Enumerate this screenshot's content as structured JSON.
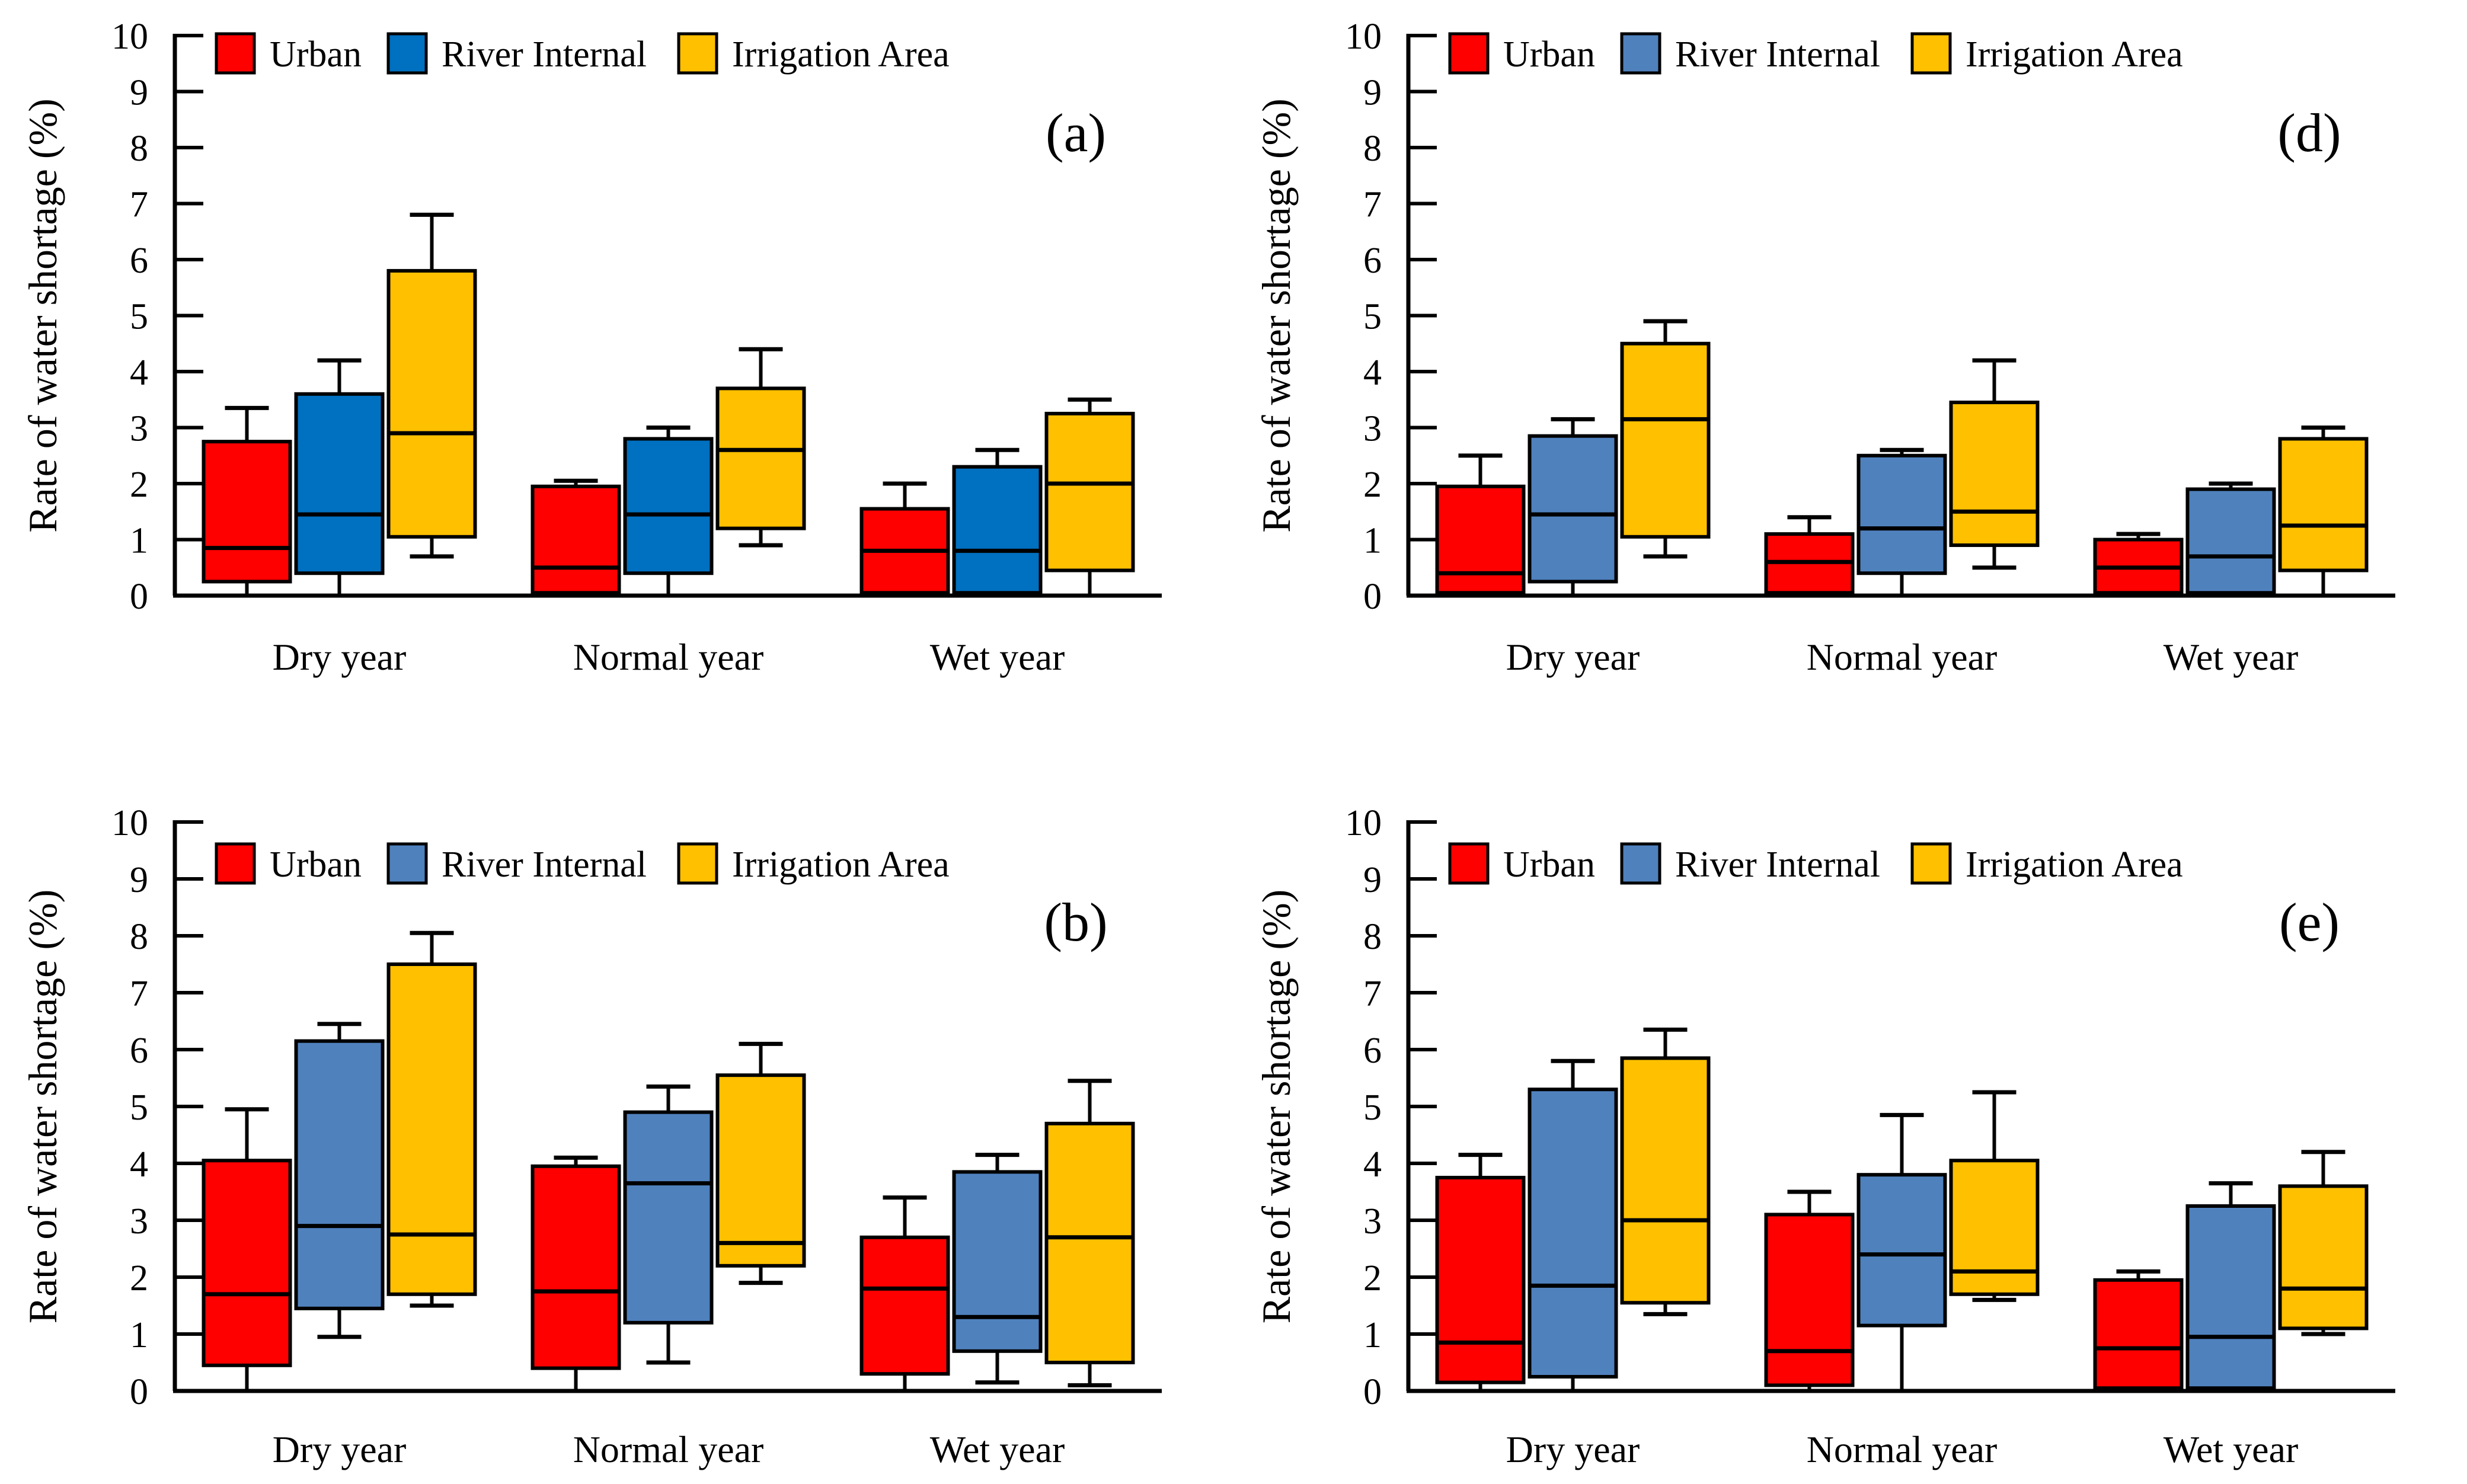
{
  "figure": {
    "background": "#FFFFFF",
    "axis_color": "#000000",
    "ylabel": "Rate of water shortage (%)",
    "categories": [
      "Dry year",
      "Normal year",
      "Wet year"
    ],
    "legend_labels": [
      "Urban",
      "River Internal",
      "Irrigation Area"
    ]
  },
  "chart_data": [
    {
      "type": "boxplot",
      "panel_label": "(a)",
      "position": "top-left",
      "title": "",
      "xlabel": "",
      "ylabel": "Rate of water shortage (%)",
      "ylim": [
        0,
        10
      ],
      "yticks": [
        0,
        1,
        2,
        3,
        4,
        5,
        6,
        7,
        8,
        9,
        10
      ],
      "grid": "off",
      "legend_position": "top-inside",
      "categories": [
        "Dry year",
        "Normal year",
        "Wet year"
      ],
      "series": [
        {
          "name": "Urban",
          "color": "#FF0000",
          "boxes": [
            {
              "low": 0,
              "q1": 0.25,
              "median": 0.85,
              "q3": 2.75,
              "high": 3.35
            },
            {
              "low": 0,
              "q1": 0.05,
              "median": 0.5,
              "q3": 1.95,
              "high": 2.05
            },
            {
              "low": 0,
              "q1": 0.05,
              "median": 0.8,
              "q3": 1.55,
              "high": 2.0
            }
          ]
        },
        {
          "name": "River Internal",
          "color": "#0070C0",
          "boxes": [
            {
              "low": 0,
              "q1": 0.4,
              "median": 1.45,
              "q3": 3.6,
              "high": 4.2
            },
            {
              "low": 0,
              "q1": 0.4,
              "median": 1.45,
              "q3": 2.8,
              "high": 3.0
            },
            {
              "low": 0,
              "q1": 0.05,
              "median": 0.8,
              "q3": 2.3,
              "high": 2.6
            }
          ]
        },
        {
          "name": "Irrigation Area",
          "color": "#FFC000",
          "boxes": [
            {
              "low": 0.7,
              "q1": 1.05,
              "median": 2.9,
              "q3": 5.8,
              "high": 6.8
            },
            {
              "low": 0.9,
              "q1": 1.2,
              "median": 2.6,
              "q3": 3.7,
              "high": 4.4
            },
            {
              "low": 0,
              "q1": 0.45,
              "median": 2.0,
              "q3": 3.25,
              "high": 3.5
            }
          ]
        }
      ]
    },
    {
      "type": "boxplot",
      "panel_label": "(d)",
      "position": "top-right",
      "title": "",
      "xlabel": "",
      "ylabel": "Rate of water shortage (%)",
      "ylim": [
        0,
        10
      ],
      "yticks": [
        0,
        1,
        2,
        3,
        4,
        5,
        6,
        7,
        8,
        9,
        10
      ],
      "grid": "off",
      "legend_position": "top-inside",
      "categories": [
        "Dry year",
        "Normal year",
        "Wet year"
      ],
      "series": [
        {
          "name": "Urban",
          "color": "#FF0000",
          "boxes": [
            {
              "low": 0,
              "q1": 0.05,
              "median": 0.4,
              "q3": 1.95,
              "high": 2.5
            },
            {
              "low": 0,
              "q1": 0.05,
              "median": 0.6,
              "q3": 1.1,
              "high": 1.4
            },
            {
              "low": 0,
              "q1": 0.05,
              "median": 0.5,
              "q3": 1.0,
              "high": 1.1
            }
          ]
        },
        {
          "name": "River Internal",
          "color": "#4F81BD",
          "boxes": [
            {
              "low": 0,
              "q1": 0.25,
              "median": 1.45,
              "q3": 2.85,
              "high": 3.15
            },
            {
              "low": 0,
              "q1": 0.4,
              "median": 1.2,
              "q3": 2.5,
              "high": 2.6
            },
            {
              "low": 0,
              "q1": 0.05,
              "median": 0.7,
              "q3": 1.9,
              "high": 2.0
            }
          ]
        },
        {
          "name": "Irrigation Area",
          "color": "#FFC000",
          "boxes": [
            {
              "low": 0.7,
              "q1": 1.05,
              "median": 3.15,
              "q3": 4.5,
              "high": 4.9
            },
            {
              "low": 0.5,
              "q1": 0.9,
              "median": 1.5,
              "q3": 3.45,
              "high": 4.2
            },
            {
              "low": 0,
              "q1": 0.45,
              "median": 1.25,
              "q3": 2.8,
              "high": 3.0
            }
          ]
        }
      ]
    },
    {
      "type": "boxplot",
      "panel_label": "(b)",
      "position": "bottom-left",
      "title": "",
      "xlabel": "",
      "ylabel": "Rate of water shortage (%)",
      "ylim": [
        0,
        10
      ],
      "yticks": [
        0,
        1,
        2,
        3,
        4,
        5,
        6,
        7,
        8,
        9,
        10
      ],
      "grid": "off",
      "legend_position": "top-inside",
      "categories": [
        "Dry year",
        "Normal year",
        "Wet year"
      ],
      "series": [
        {
          "name": "Urban",
          "color": "#FF0000",
          "boxes": [
            {
              "low": 0,
              "q1": 0.45,
              "median": 1.7,
              "q3": 4.05,
              "high": 4.95
            },
            {
              "low": 0,
              "q1": 0.4,
              "median": 1.75,
              "q3": 3.95,
              "high": 4.1
            },
            {
              "low": 0,
              "q1": 0.3,
              "median": 1.8,
              "q3": 2.7,
              "high": 3.4
            }
          ]
        },
        {
          "name": "River Internal",
          "color": "#4F81BD",
          "boxes": [
            {
              "low": 0.95,
              "q1": 1.45,
              "median": 2.9,
              "q3": 6.15,
              "high": 6.45
            },
            {
              "low": 0.5,
              "q1": 1.2,
              "median": 3.65,
              "q3": 4.9,
              "high": 5.35
            },
            {
              "low": 0.15,
              "q1": 0.7,
              "median": 1.3,
              "q3": 3.85,
              "high": 4.15
            }
          ]
        },
        {
          "name": "Irrigation Area",
          "color": "#FFC000",
          "boxes": [
            {
              "low": 1.5,
              "q1": 1.7,
              "median": 2.75,
              "q3": 7.5,
              "high": 8.05
            },
            {
              "low": 1.9,
              "q1": 2.2,
              "median": 2.6,
              "q3": 5.55,
              "high": 6.1
            },
            {
              "low": 0.1,
              "q1": 0.5,
              "median": 2.7,
              "q3": 4.7,
              "high": 5.45
            }
          ]
        }
      ]
    },
    {
      "type": "boxplot",
      "panel_label": "(e)",
      "position": "bottom-right",
      "title": "",
      "xlabel": "",
      "ylabel": "Rate of water shortage (%)",
      "ylim": [
        0,
        10
      ],
      "yticks": [
        0,
        1,
        2,
        3,
        4,
        5,
        6,
        7,
        8,
        9,
        10
      ],
      "grid": "off",
      "legend_position": "top-inside",
      "categories": [
        "Dry year",
        "Normal year",
        "Wet year"
      ],
      "series": [
        {
          "name": "Urban",
          "color": "#FF0000",
          "boxes": [
            {
              "low": 0,
              "q1": 0.15,
              "median": 0.85,
              "q3": 3.75,
              "high": 4.15
            },
            {
              "low": 0,
              "q1": 0.1,
              "median": 0.7,
              "q3": 3.1,
              "high": 3.5
            },
            {
              "low": 0,
              "q1": 0.05,
              "median": 0.75,
              "q3": 1.95,
              "high": 2.1
            }
          ]
        },
        {
          "name": "River Internal",
          "color": "#4F81BD",
          "boxes": [
            {
              "low": 0,
              "q1": 0.25,
              "median": 1.85,
              "q3": 5.3,
              "high": 5.8
            },
            {
              "low": 0,
              "q1": 1.15,
              "median": 2.4,
              "q3": 3.8,
              "high": 4.85
            },
            {
              "low": 0,
              "q1": 0.05,
              "median": 0.95,
              "q3": 3.25,
              "high": 3.65
            }
          ]
        },
        {
          "name": "Irrigation Area",
          "color": "#FFC000",
          "boxes": [
            {
              "low": 1.35,
              "q1": 1.55,
              "median": 3.0,
              "q3": 5.85,
              "high": 6.35
            },
            {
              "low": 1.6,
              "q1": 1.7,
              "median": 2.1,
              "q3": 4.05,
              "high": 5.25
            },
            {
              "low": 1.0,
              "q1": 1.1,
              "median": 1.8,
              "q3": 3.6,
              "high": 4.2
            }
          ]
        }
      ]
    }
  ]
}
